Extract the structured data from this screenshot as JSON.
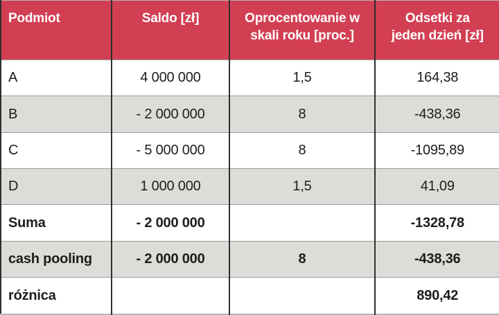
{
  "table": {
    "columns": [
      {
        "id": "podmiot",
        "label": "Podmiot"
      },
      {
        "id": "saldo",
        "label": "Saldo [zł]"
      },
      {
        "id": "oprocentowanie",
        "label": "Oprocentowanie w\nskali roku [proc.]"
      },
      {
        "id": "odsetki",
        "label": "Odsetki za\njeden dzień [zł]"
      }
    ],
    "rows": [
      {
        "podmiot": "A",
        "saldo": "4 000 000",
        "oprocentowanie": "1,5",
        "odsetki": "164,38"
      },
      {
        "podmiot": "B",
        "saldo": "- 2 000 000",
        "oprocentowanie": "8",
        "odsetki": "-438,36"
      },
      {
        "podmiot": "C",
        "saldo": "- 5 000 000",
        "oprocentowanie": "8",
        "odsetki": "-1095,89"
      },
      {
        "podmiot": "D",
        "saldo": "1 000 000",
        "oprocentowanie": "1,5",
        "odsetki": "41,09"
      },
      {
        "podmiot": "Suma",
        "saldo": "- 2 000 000",
        "oprocentowanie": "",
        "odsetki": "-1328,78"
      },
      {
        "podmiot": "cash pooling",
        "saldo": "- 2 000 000",
        "oprocentowanie": "8",
        "odsetki": "-438,36"
      },
      {
        "podmiot": "różnica",
        "saldo": "",
        "oprocentowanie": "",
        "odsetki": "890,42"
      }
    ]
  },
  "colors": {
    "header_bg": "#d23f53",
    "header_text": "#ffffff",
    "row_bg": "#ffffff",
    "row_alt_bg": "#dddcd9",
    "grid_dark": "#2f2f2f",
    "grid_light": "#9b9b9b",
    "text": "#1d1d1b"
  }
}
